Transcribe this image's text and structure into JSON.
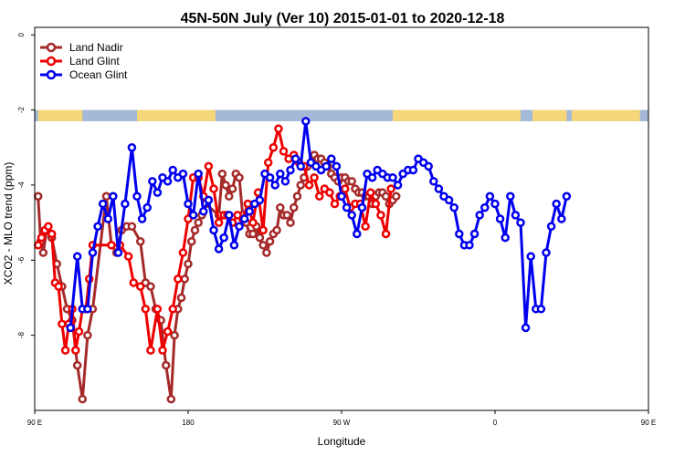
{
  "chart_data": {
    "type": "line",
    "title": "45N-50N July (Ver 10)   2015-01-01 to 2020-12-18",
    "xlabel": "Longitude",
    "ylabel": "XCO2 - MLO trend (ppm)",
    "xlim": [
      90,
      450
    ],
    "ylim": [
      -10,
      0.2
    ],
    "x_ticks": [
      {
        "value": 90,
        "label": "90 E"
      },
      {
        "value": 180,
        "label": "180"
      },
      {
        "value": 270,
        "label": "90 W"
      },
      {
        "value": 360,
        "label": "0"
      },
      {
        "value": 450,
        "label": "90 E"
      },
      {
        "value": 540,
        "label": "180"
      }
    ],
    "y_ticks": [
      {
        "value": 0,
        "label": "0"
      },
      {
        "value": -2,
        "label": "-2"
      },
      {
        "value": -4,
        "label": "-4"
      },
      {
        "value": -6,
        "label": "-6"
      },
      {
        "value": -8,
        "label": "-8"
      }
    ],
    "grid": false,
    "legend_position": "top-left",
    "map_band": {
      "y_top": -2.0,
      "y_bottom": -2.3,
      "land_color": "#f5d77a",
      "ocean_color": "#a4b8d8"
    },
    "series": [
      {
        "name": "Land Nadir",
        "color": "#a52a2a",
        "x": [
          92,
          93.5,
          95,
          97,
          100,
          103,
          106,
          109,
          112,
          115,
          118,
          121,
          124,
          132,
          135,
          138,
          141,
          144,
          147,
          152,
          155,
          158,
          161,
          164,
          167,
          170,
          172,
          174,
          176,
          178,
          180,
          182,
          184,
          186,
          188,
          190,
          198,
          200,
          202,
          204,
          206,
          208,
          210,
          212,
          214,
          216,
          218,
          220,
          222,
          224,
          226,
          228,
          230,
          232,
          234,
          236,
          238,
          240,
          242,
          244,
          246,
          248,
          250,
          252,
          254,
          256,
          258,
          260,
          262,
          264,
          266,
          268,
          270,
          272,
          274,
          276,
          278,
          280,
          282,
          284,
          286,
          288,
          290,
          292,
          294,
          296,
          298,
          300,
          302
        ],
        "y": [
          -4.3,
          -5.5,
          -5.8,
          -5.2,
          -5.4,
          -6.1,
          -6.7,
          -7.3,
          -7.6,
          -8.8,
          -9.7,
          -8.0,
          -7.3,
          -4.3,
          -5.6,
          -5.8,
          -5.2,
          -5.1,
          -5.1,
          -5.5,
          -6.6,
          -6.7,
          -7.3,
          -7.6,
          -8.8,
          -9.7,
          -8.0,
          -7.3,
          -7.0,
          -6.5,
          -6.1,
          -5.5,
          -5.2,
          -5.0,
          -4.8,
          -4.5,
          -4.8,
          -3.7,
          -4.0,
          -4.3,
          -4.1,
          -3.7,
          -3.8,
          -4.8,
          -5.0,
          -5.3,
          -5.3,
          -5.1,
          -5.4,
          -5.6,
          -5.8,
          -5.5,
          -5.3,
          -5.2,
          -4.6,
          -4.8,
          -4.8,
          -5.0,
          -4.6,
          -4.3,
          -4.0,
          -3.8,
          -3.5,
          -3.4,
          -3.2,
          -3.3,
          -3.3,
          -3.4,
          -3.5,
          -3.7,
          -3.8,
          -3.9,
          -3.8,
          -3.8,
          -3.9,
          -3.9,
          -4.1,
          -4.2,
          -4.2,
          -4.3,
          -4.3,
          -4.5,
          -4.3,
          -4.2,
          -4.2,
          -4.3,
          -4.5,
          -4.4,
          -4.3
        ]
      },
      {
        "name": "Land Glint",
        "color": "#ee0000",
        "x": [
          92,
          94,
          96,
          98,
          100,
          102,
          104,
          106,
          108,
          110,
          112,
          114,
          116,
          118,
          120,
          122,
          124,
          135,
          140,
          145,
          148,
          152,
          155,
          158,
          162,
          165,
          168,
          171,
          174,
          177,
          180,
          183,
          186,
          189,
          192,
          195,
          198,
          201,
          203,
          206,
          209,
          212,
          215,
          218,
          221,
          224,
          227,
          230,
          233,
          236,
          239,
          242,
          245,
          248,
          251,
          254,
          257,
          260,
          263,
          266,
          269,
          272,
          275,
          278,
          281,
          284,
          287,
          290,
          293,
          296,
          299
        ],
        "y": [
          -5.6,
          -5.4,
          -5.2,
          -5.1,
          -5.3,
          -6.6,
          -6.7,
          -7.7,
          -8.4,
          -7.7,
          -7.3,
          -8.4,
          -7.9,
          -7.3,
          -7.3,
          -6.5,
          -5.6,
          -5.6,
          -5.6,
          -5.9,
          -6.6,
          -6.7,
          -7.3,
          -8.4,
          -7.3,
          -8.4,
          -7.9,
          -7.3,
          -6.5,
          -5.8,
          -4.9,
          -3.8,
          -3.8,
          -4.3,
          -3.5,
          -4.1,
          -5.0,
          -4.8,
          -4.8,
          -5.0,
          -4.8,
          -4.9,
          -4.5,
          -5.0,
          -4.2,
          -5.2,
          -3.4,
          -3.0,
          -2.5,
          -3.1,
          -3.3,
          -3.2,
          -3.4,
          -3.5,
          -4.0,
          -3.8,
          -4.3,
          -4.1,
          -4.2,
          -4.5,
          -4.3,
          -4.1,
          -4.6,
          -4.5,
          -4.5,
          -5.1,
          -4.2,
          -4.5,
          -4.8,
          -5.3,
          -4.1
        ]
      },
      {
        "name": "Ocean Glint",
        "color": "#0000ee",
        "x": [
          111,
          115,
          118,
          121,
          124,
          127,
          130,
          133,
          136,
          139,
          143,
          147,
          150,
          153,
          156,
          159,
          162,
          165,
          168,
          171,
          174,
          177,
          180,
          183,
          186,
          189,
          192,
          195,
          198,
          201,
          204,
          207,
          210,
          213,
          216,
          219,
          222,
          225,
          228,
          231,
          234,
          237,
          240,
          243,
          246,
          249,
          252,
          255,
          258,
          261,
          264,
          267,
          270,
          273,
          276,
          279,
          282,
          285,
          288,
          291,
          294,
          297,
          300,
          303,
          306,
          309,
          312,
          315,
          318,
          321,
          324,
          327,
          330,
          333,
          336,
          339,
          342,
          345,
          348,
          351,
          354,
          357,
          360,
          363,
          366,
          369,
          372,
          375,
          378,
          381,
          384,
          387,
          390,
          393,
          396,
          399,
          402
        ],
        "y": [
          -7.8,
          -5.9,
          -7.3,
          -7.3,
          -5.8,
          -5.1,
          -4.5,
          -4.9,
          -4.3,
          -5.8,
          -4.5,
          -3.0,
          -4.3,
          -4.9,
          -4.6,
          -3.9,
          -4.2,
          -3.8,
          -3.9,
          -3.6,
          -3.8,
          -3.7,
          -4.5,
          -4.8,
          -3.7,
          -4.7,
          -4.4,
          -5.2,
          -5.7,
          -5.4,
          -4.8,
          -5.6,
          -5.1,
          -4.9,
          -4.7,
          -4.5,
          -4.4,
          -3.7,
          -3.8,
          -4.0,
          -3.7,
          -3.9,
          -3.6,
          -3.3,
          -3.5,
          -2.3,
          -3.4,
          -3.5,
          -3.6,
          -3.5,
          -3.3,
          -3.5,
          -4.3,
          -4.6,
          -4.8,
          -5.3,
          -4.6,
          -3.7,
          -3.8,
          -3.6,
          -3.7,
          -3.8,
          -3.8,
          -4.0,
          -3.7,
          -3.6,
          -3.6,
          -3.3,
          -3.4,
          -3.5,
          -3.9,
          -4.1,
          -4.3,
          -4.4,
          -4.6,
          -5.3,
          -5.6,
          -5.6,
          -5.3,
          -4.8,
          -4.6,
          -4.3,
          -4.5,
          -4.9,
          -5.4,
          -4.3,
          -4.8,
          -5.0,
          -7.8,
          -5.9,
          -7.3,
          -7.3,
          -5.8,
          -5.1,
          -4.5,
          -4.9,
          -4.3
        ]
      }
    ]
  }
}
